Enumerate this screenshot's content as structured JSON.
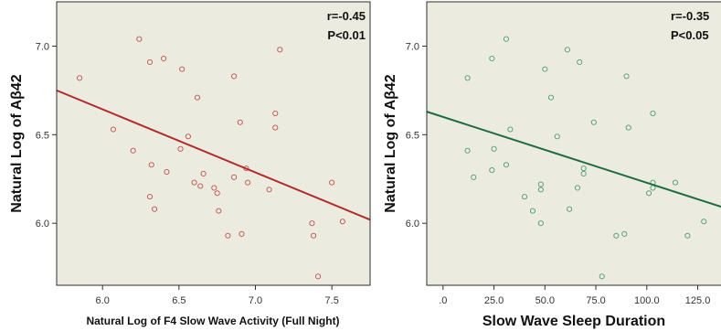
{
  "chart_data": [
    {
      "type": "scatter",
      "title": "",
      "xlabel": "Natural Log of F4 Slow Wave Activity (Full Night)",
      "ylabel": "Natural Log of Aβ42",
      "xlim": [
        5.7,
        7.75
      ],
      "ylim": [
        5.65,
        7.25
      ],
      "x_ticks": [
        6.0,
        6.5,
        7.0,
        7.5
      ],
      "x_tick_labels": [
        "6.0",
        "6.5",
        "7.0",
        "7.5"
      ],
      "y_ticks": [
        6.0,
        6.5,
        7.0
      ],
      "y_tick_labels": [
        "6.0",
        "6.5",
        "7.0"
      ],
      "grid": false,
      "annotations": [
        "r=-0.45",
        "P<0.01"
      ],
      "colors": {
        "points": "#c0504d",
        "fit_line": "#b22a2a",
        "background": "#ebebdf"
      },
      "fit_line": {
        "x": [
          5.7,
          7.75
        ],
        "y": [
          6.75,
          6.02
        ]
      },
      "points": [
        {
          "x": 5.85,
          "y": 6.82
        },
        {
          "x": 6.07,
          "y": 6.53
        },
        {
          "x": 6.2,
          "y": 6.41
        },
        {
          "x": 6.24,
          "y": 7.04
        },
        {
          "x": 6.31,
          "y": 6.91
        },
        {
          "x": 6.4,
          "y": 6.93
        },
        {
          "x": 6.32,
          "y": 6.33
        },
        {
          "x": 6.42,
          "y": 6.29
        },
        {
          "x": 6.31,
          "y": 6.15
        },
        {
          "x": 6.34,
          "y": 6.08
        },
        {
          "x": 6.52,
          "y": 6.87
        },
        {
          "x": 6.51,
          "y": 6.42
        },
        {
          "x": 6.56,
          "y": 6.49
        },
        {
          "x": 6.6,
          "y": 6.23
        },
        {
          "x": 6.62,
          "y": 6.71
        },
        {
          "x": 6.64,
          "y": 6.21
        },
        {
          "x": 6.66,
          "y": 6.28
        },
        {
          "x": 6.73,
          "y": 6.2
        },
        {
          "x": 6.75,
          "y": 6.17
        },
        {
          "x": 6.76,
          "y": 6.07
        },
        {
          "x": 6.82,
          "y": 5.93
        },
        {
          "x": 6.86,
          "y": 6.83
        },
        {
          "x": 6.86,
          "y": 6.26
        },
        {
          "x": 6.9,
          "y": 6.57
        },
        {
          "x": 6.91,
          "y": 5.94
        },
        {
          "x": 6.94,
          "y": 6.31
        },
        {
          "x": 6.95,
          "y": 6.23
        },
        {
          "x": 7.09,
          "y": 6.19
        },
        {
          "x": 7.13,
          "y": 6.62
        },
        {
          "x": 7.13,
          "y": 6.54
        },
        {
          "x": 7.16,
          "y": 6.98
        },
        {
          "x": 7.37,
          "y": 6.0
        },
        {
          "x": 7.38,
          "y": 5.93
        },
        {
          "x": 7.41,
          "y": 5.7
        },
        {
          "x": 7.5,
          "y": 6.23
        },
        {
          "x": 7.57,
          "y": 6.01
        }
      ]
    },
    {
      "type": "scatter",
      "title": "",
      "xlabel": "Slow Wave Sleep Duration",
      "ylabel": "Natural Log of Aβ42",
      "xlim": [
        -8,
        140
      ],
      "ylim": [
        5.65,
        7.25
      ],
      "x_ticks": [
        0,
        25,
        50,
        75,
        100,
        125
      ],
      "x_tick_labels": [
        ".0",
        "25.0",
        "50.0",
        "75.0",
        "100.0",
        "125.0"
      ],
      "y_ticks": [
        6.0,
        6.5,
        7.0
      ],
      "y_tick_labels": [
        "6.0",
        "6.5",
        "7.0"
      ],
      "grid": false,
      "annotations": [
        "r=-0.35",
        "P<0.05"
      ],
      "colors": {
        "points": "#4f9a78",
        "fit_line": "#1e6b42",
        "background": "#ebebdf"
      },
      "fit_line": {
        "x": [
          -8,
          140
        ],
        "y": [
          6.63,
          6.08
        ]
      },
      "points": [
        {
          "x": 12,
          "y": 6.82
        },
        {
          "x": 12,
          "y": 6.41
        },
        {
          "x": 15,
          "y": 6.26
        },
        {
          "x": 24,
          "y": 6.93
        },
        {
          "x": 24,
          "y": 6.3
        },
        {
          "x": 25,
          "y": 6.42
        },
        {
          "x": 31,
          "y": 7.04
        },
        {
          "x": 31,
          "y": 6.33
        },
        {
          "x": 33,
          "y": 6.53
        },
        {
          "x": 40,
          "y": 6.15
        },
        {
          "x": 44,
          "y": 6.07
        },
        {
          "x": 48,
          "y": 6.22
        },
        {
          "x": 48,
          "y": 6.19
        },
        {
          "x": 48,
          "y": 6.0
        },
        {
          "x": 50,
          "y": 6.87
        },
        {
          "x": 53,
          "y": 6.71
        },
        {
          "x": 56,
          "y": 6.49
        },
        {
          "x": 61,
          "y": 6.98
        },
        {
          "x": 62,
          "y": 6.08
        },
        {
          "x": 66,
          "y": 6.2
        },
        {
          "x": 67,
          "y": 6.91
        },
        {
          "x": 69,
          "y": 6.31
        },
        {
          "x": 69,
          "y": 6.28
        },
        {
          "x": 74,
          "y": 6.57
        },
        {
          "x": 78,
          "y": 5.7
        },
        {
          "x": 85,
          "y": 5.93
        },
        {
          "x": 89,
          "y": 5.94
        },
        {
          "x": 90,
          "y": 6.83
        },
        {
          "x": 91,
          "y": 6.54
        },
        {
          "x": 101,
          "y": 6.17
        },
        {
          "x": 103,
          "y": 6.62
        },
        {
          "x": 103,
          "y": 6.23
        },
        {
          "x": 103,
          "y": 6.2
        },
        {
          "x": 114,
          "y": 6.23
        },
        {
          "x": 120,
          "y": 5.93
        },
        {
          "x": 128,
          "y": 6.01
        }
      ]
    }
  ]
}
